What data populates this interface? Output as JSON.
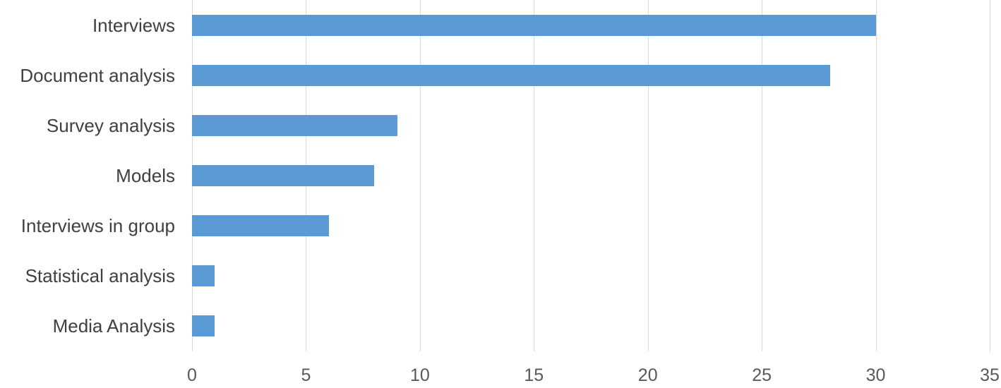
{
  "chart_data": {
    "type": "bar",
    "orientation": "horizontal",
    "title": "",
    "xlabel": "",
    "ylabel": "",
    "categories": [
      "Interviews",
      "Document analysis",
      "Survey analysis",
      "Models",
      "Interviews in group",
      "Statistical analysis",
      "Media Analysis"
    ],
    "values": [
      30,
      28,
      9,
      8,
      6,
      1,
      1
    ],
    "xlim": [
      0,
      35
    ],
    "xticks": [
      0,
      5,
      10,
      15,
      20,
      25,
      30,
      35
    ],
    "grid": true,
    "legend": "none",
    "colors": {
      "bar": "#5b9bd5",
      "gridline": "#d9d9d9",
      "category_label": "#404040",
      "tick_label": "#595959",
      "background": "#ffffff"
    }
  }
}
